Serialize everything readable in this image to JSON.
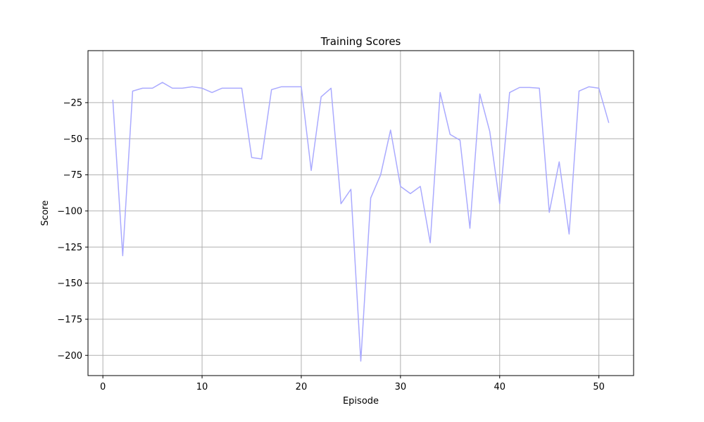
{
  "chart_data": {
    "type": "line",
    "title": "Training Scores",
    "xlabel": "Episode",
    "ylabel": "Score",
    "xlim": [
      -1.5,
      53.5
    ],
    "ylim": [
      -214,
      11
    ],
    "x_ticks": [
      0,
      10,
      20,
      30,
      40,
      50
    ],
    "y_ticks": [
      -200,
      -175,
      -150,
      -125,
      -100,
      -75,
      -50,
      -25
    ],
    "x_tick_labels": [
      "0",
      "10",
      "20",
      "30",
      "40",
      "50"
    ],
    "y_tick_labels": [
      "−200",
      "−175",
      "−150",
      "−125",
      "−100",
      "−75",
      "−50",
      "−25"
    ],
    "grid": true,
    "series": [
      {
        "color": "#aaaaff",
        "x": [
          1,
          2,
          3,
          4,
          5,
          6,
          7,
          8,
          9,
          10,
          11,
          12,
          13,
          14,
          15,
          16,
          17,
          18,
          19,
          20,
          21,
          22,
          23,
          24,
          25,
          26,
          27,
          28,
          29,
          30,
          31,
          32,
          33,
          34,
          35,
          36,
          37,
          38,
          39,
          40,
          41,
          42,
          43,
          44,
          45,
          46,
          47,
          48,
          49,
          50,
          51
        ],
        "y": [
          -23,
          -131,
          -17,
          -15,
          -15,
          -11,
          -15,
          -15,
          -14,
          -15,
          -18,
          -15,
          -15,
          -15,
          -63,
          -64,
          -16,
          -14,
          -14,
          -14,
          -72,
          -21,
          -15,
          -95,
          -85,
          -204,
          -91,
          -75,
          -44,
          -83,
          -88,
          -83,
          -122,
          -18,
          -47,
          -51,
          -112,
          -19,
          -45,
          -95,
          -18,
          -14.5,
          -14.5,
          -15,
          -101,
          -66,
          -116,
          -17,
          -14,
          -15,
          -39
        ]
      }
    ]
  }
}
